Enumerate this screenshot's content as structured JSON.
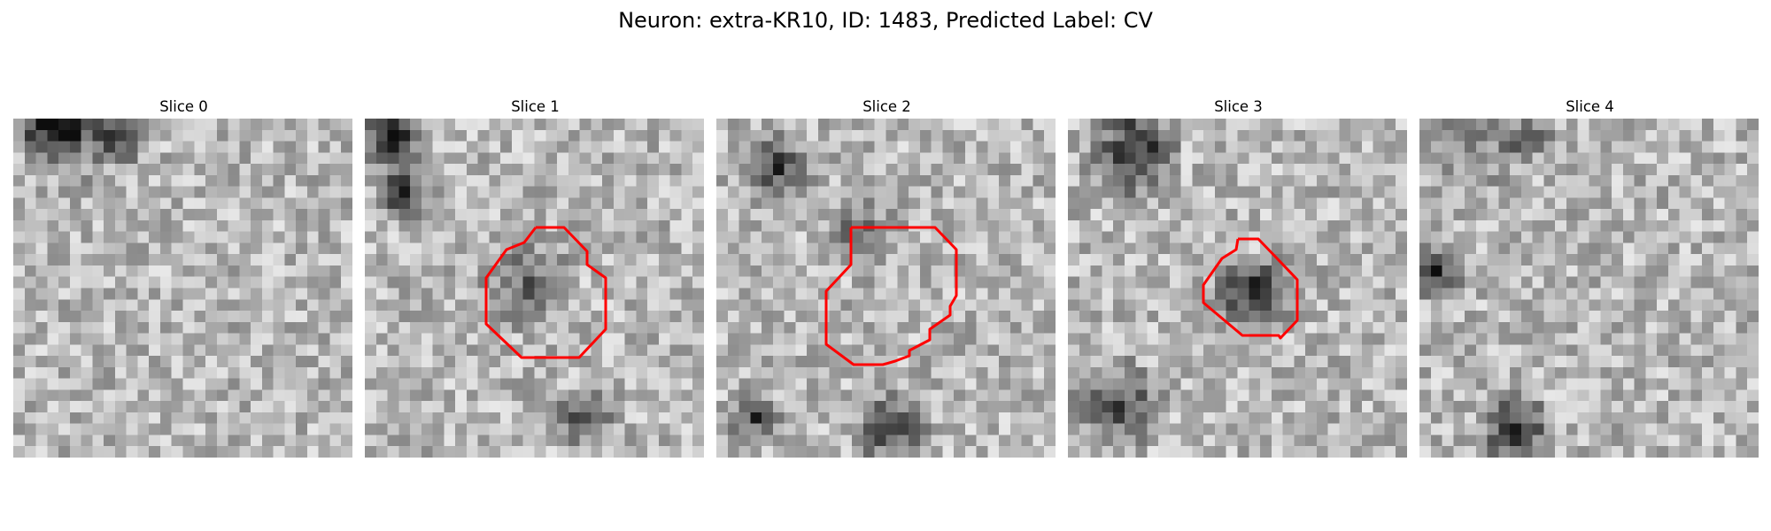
{
  "figure": {
    "title": "Neuron: extra-KR10, ID: 1483, Predicted Label: CV"
  },
  "panels": [
    {
      "title": "Slice 0",
      "has_contour": false
    },
    {
      "title": "Slice 1",
      "has_contour": true
    },
    {
      "title": "Slice 2",
      "has_contour": true
    },
    {
      "title": "Slice 3",
      "has_contour": true
    },
    {
      "title": "Slice 4",
      "has_contour": false
    }
  ],
  "colors": {
    "contour": "#ff0000",
    "colormap": "grayscale"
  }
}
